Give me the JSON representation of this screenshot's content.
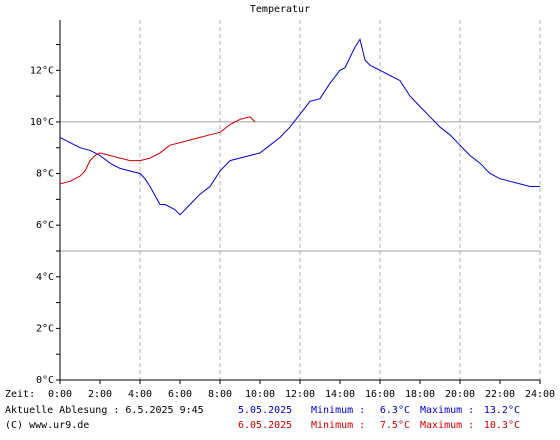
{
  "chart_data": {
    "type": "line",
    "title": "Temperatur",
    "xlabel": "Zeit:",
    "x_unit": "hours",
    "xlim": [
      0,
      24
    ],
    "ylim": [
      0,
      13.95
    ],
    "x_ticks": [
      "0:00",
      "2:00",
      "4:00",
      "6:00",
      "8:00",
      "10:00",
      "12:00",
      "14:00",
      "16:00",
      "18:00",
      "20:00",
      "22:00",
      "24:00"
    ],
    "y_ticks": [
      {
        "value": 0,
        "label": "0°C"
      },
      {
        "value": 2,
        "label": "2°C"
      },
      {
        "value": 4,
        "label": "4°C"
      },
      {
        "value": 6,
        "label": "6°C"
      },
      {
        "value": 8,
        "label": "8°C"
      },
      {
        "value": 10,
        "label": "10°C"
      },
      {
        "value": 12,
        "label": "12°C"
      }
    ],
    "reference_lines": [
      5,
      10
    ],
    "grid": true,
    "series": [
      {
        "name": "5.05.2025",
        "color": "#0000cc",
        "x": [
          0,
          0.5,
          1,
          1.5,
          2,
          2.5,
          3,
          3.5,
          4,
          4.25,
          4.5,
          5,
          5.25,
          5.5,
          5.75,
          6,
          6.25,
          6.5,
          7,
          7.5,
          8,
          8.5,
          9,
          9.5,
          10,
          10.5,
          11,
          11.5,
          12,
          12.5,
          13,
          13.5,
          14,
          14.25,
          14.5,
          14.75,
          15,
          15.25,
          15.5,
          16,
          16.5,
          17,
          17.5,
          18,
          18.5,
          19,
          19.5,
          20,
          20.5,
          21,
          21.5,
          22,
          22.5,
          23,
          23.5,
          24
        ],
        "y": [
          9.4,
          9.2,
          9.0,
          8.9,
          8.7,
          8.4,
          8.2,
          8.1,
          8.0,
          7.8,
          7.5,
          6.8,
          6.8,
          6.7,
          6.6,
          6.4,
          6.6,
          6.8,
          7.2,
          7.5,
          8.1,
          8.5,
          8.6,
          8.7,
          8.8,
          9.1,
          9.4,
          9.8,
          10.3,
          10.8,
          10.9,
          11.5,
          12.0,
          12.1,
          12.5,
          12.9,
          13.2,
          12.4,
          12.2,
          12.0,
          11.8,
          11.6,
          11.0,
          10.6,
          10.2,
          9.8,
          9.5,
          9.1,
          8.7,
          8.4,
          8.0,
          7.8,
          7.7,
          7.6,
          7.5,
          7.5
        ]
      },
      {
        "name": "6.05.2025",
        "color": "#cc0000",
        "x": [
          0,
          0.5,
          1,
          1.25,
          1.5,
          1.75,
          2,
          2.5,
          3,
          3.5,
          4,
          4.5,
          5,
          5.5,
          6,
          6.5,
          7,
          7.5,
          8,
          8.5,
          9,
          9.5,
          9.75
        ],
        "y": [
          7.6,
          7.7,
          7.9,
          8.1,
          8.5,
          8.7,
          8.8,
          8.7,
          8.6,
          8.5,
          8.5,
          8.6,
          8.8,
          9.1,
          9.2,
          9.3,
          9.4,
          9.5,
          9.6,
          9.9,
          10.1,
          10.2,
          10.0
        ]
      }
    ]
  },
  "footer": {
    "reading_label": "Aktuelle Ablesung : 6.5.2025 9:45",
    "copyright": "(C) www.ur9.de",
    "min_label": "Minimum :",
    "max_label": "Maximum :",
    "rows": [
      {
        "date": "5.05.2025",
        "min": "6.3°C",
        "max": "13.2°C"
      },
      {
        "date": "6.05.2025",
        "min": "7.5°C",
        "max": "10.3°C"
      }
    ]
  }
}
